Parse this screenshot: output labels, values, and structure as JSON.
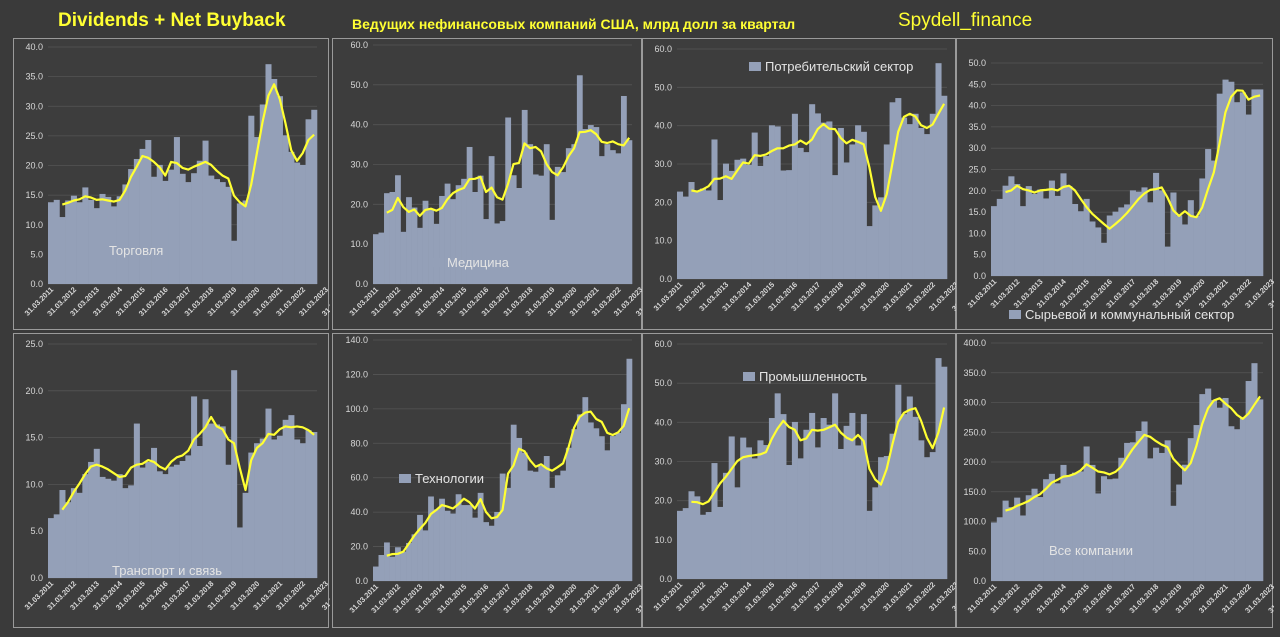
{
  "header": {
    "left_title": "Dividends + Net Buyback",
    "center_title": "Ведущих нефинансовых компаний США, млрд долл за квартал",
    "right_title": "Spydell_finance"
  },
  "colors": {
    "bar": "#94a0b8",
    "line": "#ffff33",
    "grid": "#555555",
    "text": "#d8d8d8"
  },
  "x_tick_labels": [
    "31.03.2011",
    "31.03.2012",
    "31.03.2013",
    "31.03.2014",
    "31.03.2015",
    "31.03.2016",
    "31.03.2017",
    "31.03.2018",
    "31.03.2019",
    "31.03.2020",
    "31.03.2021",
    "31.03.2022",
    "31.03.2023",
    "31.03.2024"
  ],
  "chart_data": [
    {
      "type": "bar",
      "legend": "Торговля",
      "ylim": [
        0,
        40
      ],
      "ystep": 5,
      "ydec": 1,
      "values": [
        13.8,
        14.2,
        11.3,
        14.1,
        14.9,
        13.8,
        16.3,
        14.2,
        12.8,
        15.2,
        14.7,
        13.1,
        14.8,
        16.8,
        19.4,
        21.1,
        22.8,
        24.3,
        18.1,
        20.1,
        17.4,
        19.3,
        24.8,
        18.6,
        17.2,
        18.7,
        20.8,
        24.2,
        18.3,
        17.7,
        17.2,
        16.4,
        7.3,
        13.6,
        14.1,
        28.4,
        24.8,
        30.3,
        37.1,
        34.6,
        31.7,
        25.1,
        22.3,
        20.5,
        20.1,
        27.8,
        29.4
      ],
      "line": [
        null,
        null,
        13.4,
        13.7,
        14.1,
        14.3,
        14.8,
        14.6,
        14.2,
        14.3,
        14.1,
        13.9,
        14.2,
        15.8,
        18.1,
        19.8,
        21.6,
        21.3,
        20.6,
        19.7,
        18.3,
        20.6,
        20.4,
        19.6,
        19.3,
        19.8,
        20.2,
        20.6,
        20.1,
        19.1,
        18.3,
        17.8,
        14.9,
        13.8,
        13.1,
        16.8,
        22.1,
        27.4,
        31.8,
        33.7,
        31.2,
        27.1,
        22.6,
        20.8,
        22.1,
        24.3,
        25.2
      ]
    },
    {
      "type": "bar",
      "legend": "Медицина",
      "ylim": [
        0,
        60
      ],
      "ystep": 10,
      "ydec": 1,
      "values": [
        12.5,
        12.9,
        22.8,
        23.1,
        27.3,
        13.1,
        21.8,
        19.2,
        14.1,
        20.9,
        18.8,
        15.1,
        22.1,
        25.2,
        21.3,
        24.8,
        26.4,
        34.4,
        23.1,
        27.2,
        16.3,
        32.1,
        15.2,
        15.8,
        41.8,
        27.3,
        24.1,
        43.7,
        35.1,
        27.5,
        27.2,
        35.1,
        16.1,
        29.4,
        28.1,
        34.1,
        35.1,
        52.4,
        38.9,
        39.9,
        39.4,
        32.1,
        35.1,
        33.6,
        32.8,
        47.2,
        36.1
      ],
      "line": [
        null,
        null,
        17.9,
        18.6,
        21.6,
        19.3,
        18.1,
        18.7,
        17.1,
        18.6,
        18.9,
        18.4,
        19.1,
        21.3,
        22.8,
        23.6,
        24.1,
        26.3,
        26.4,
        26.9,
        23.1,
        24.2,
        21.8,
        21.2,
        25.1,
        30.1,
        30.4,
        35.3,
        34.1,
        34.4,
        33.3,
        30.1,
        28.1,
        27.3,
        29.3,
        32.1,
        34.1,
        38.1,
        38.2,
        38.6,
        37.6,
        35.7,
        35.4,
        35.8,
        35.1,
        34.8,
        36.7
      ]
    },
    {
      "type": "bar",
      "legend": "Потребительский сектор",
      "ylim": [
        0,
        60
      ],
      "ystep": 10,
      "ydec": 1,
      "values": [
        22.8,
        21.5,
        25.3,
        22.8,
        23.6,
        23.1,
        36.4,
        20.6,
        30.1,
        28.2,
        31.1,
        31.4,
        29.8,
        38.2,
        29.5,
        32.1,
        40.1,
        39.8,
        28.3,
        28.4,
        43.1,
        34.2,
        33.1,
        45.6,
        43.2,
        40.8,
        41.1,
        27.1,
        39.4,
        30.4,
        35.1,
        40.1,
        38.4,
        13.8,
        19.2,
        21.3,
        35.1,
        46.1,
        47.2,
        42.1,
        40.4,
        43.1,
        39.4,
        37.8,
        43.1,
        56.3,
        47.8
      ],
      "line": [
        null,
        null,
        23.1,
        22.8,
        23.4,
        24.2,
        26.1,
        26.2,
        26.8,
        26.1,
        28.3,
        30.4,
        30.1,
        32.3,
        32.1,
        32.5,
        33.4,
        34.1,
        34.1,
        34.8,
        35.1,
        36.1,
        35.2,
        36.4,
        39.1,
        40.4,
        39.2,
        39.1,
        36.8,
        35.4,
        36.3,
        35.8,
        35.1,
        29.1,
        21.4,
        17.8,
        22.1,
        30.1,
        38.4,
        42.3,
        43.1,
        42.4,
        40.1,
        39.4,
        40.3,
        43.1,
        45.7
      ]
    },
    {
      "type": "bar",
      "legend": "Сырьевой и коммунальный сектор",
      "ylim": [
        0,
        50
      ],
      "ystep": 5,
      "ydec": 1,
      "values": [
        16.4,
        18.1,
        21.2,
        23.4,
        21.6,
        16.4,
        21.1,
        19.3,
        20.3,
        18.2,
        22.4,
        18.8,
        24.1,
        21.1,
        16.9,
        15.2,
        18.1,
        12.8,
        11.4,
        7.8,
        14.2,
        15.1,
        16.1,
        16.8,
        20.1,
        19.8,
        20.8,
        17.3,
        24.2,
        20.1,
        6.9,
        19.6,
        14.2,
        12.1,
        17.8,
        14.1,
        22.9,
        29.8,
        27.1,
        42.8,
        46.1,
        45.6,
        40.8,
        43.1,
        37.9,
        43.8,
        43.8
      ],
      "line": [
        null,
        null,
        19.7,
        20.1,
        21.2,
        20.4,
        20.1,
        19.6,
        20.1,
        20.2,
        20.4,
        20.1,
        20.9,
        21.2,
        20.1,
        18.1,
        16.2,
        14.6,
        13.4,
        12.2,
        11.1,
        12.2,
        13.4,
        14.8,
        16.4,
        18.1,
        19.4,
        20.2,
        20.4,
        20.8,
        18.4,
        15.4,
        14.1,
        15.2,
        14.1,
        13.8,
        16.1,
        20.4,
        24.3,
        31.2,
        38.4,
        42.1,
        43.6,
        43.5,
        41.4,
        42.1,
        42.4
      ]
    },
    {
      "type": "bar",
      "legend": "Транспорт и связь",
      "ylim": [
        0,
        25
      ],
      "ystep": 5,
      "ydec": 1,
      "values": [
        6.4,
        6.8,
        9.4,
        8.1,
        9.6,
        9.1,
        11.1,
        12.4,
        13.8,
        10.8,
        10.6,
        10.4,
        11.1,
        9.6,
        9.9,
        16.5,
        11.8,
        12.4,
        13.9,
        11.4,
        11.1,
        11.9,
        12.1,
        12.5,
        13.1,
        19.4,
        14.1,
        19.1,
        16.5,
        16.4,
        16.2,
        12.1,
        22.2,
        5.4,
        9.1,
        13.4,
        14.4,
        14.9,
        18.1,
        14.8,
        15.2,
        16.9,
        17.4,
        14.8,
        14.4,
        15.8,
        15.6
      ],
      "line": [
        null,
        null,
        7.3,
        8.1,
        9.2,
        10.1,
        11.1,
        11.9,
        12.1,
        11.9,
        11.6,
        11.2,
        10.8,
        10.9,
        11.8,
        12.1,
        12.2,
        12.6,
        12.4,
        11.9,
        11.6,
        12.4,
        12.9,
        13.1,
        13.6,
        14.8,
        15.4,
        16.1,
        17.2,
        16.2,
        15.9,
        14.8,
        14.4,
        11.8,
        9.4,
        12.6,
        13.9,
        14.4,
        15.4,
        15.3,
        15.9,
        16.2,
        16.1,
        16.2,
        16.1,
        15.8,
        15.3
      ]
    },
    {
      "type": "bar",
      "legend": "Технологии",
      "ylim": [
        0,
        140
      ],
      "ystep": 20,
      "ydec": 1,
      "values": [
        8.4,
        15.1,
        22.4,
        14.1,
        19.6,
        17.1,
        22.1,
        27.1,
        38.4,
        29.4,
        49.1,
        41.6,
        47.8,
        40.8,
        39.2,
        50.4,
        44.1,
        44.1,
        36.8,
        51.2,
        34.2,
        32.1,
        40.1,
        62.4,
        54.1,
        90.8,
        83.1,
        74.6,
        64.1,
        63.5,
        66.8,
        72.6,
        54.1,
        61.4,
        64.1,
        77.4,
        88.2,
        96.8,
        106.8,
        92.1,
        88.7,
        84.1,
        75.9,
        84.2,
        86.1,
        102.7,
        129.1
      ],
      "line": [
        null,
        null,
        14.7,
        15.6,
        15.8,
        17.1,
        21.6,
        26.4,
        30.2,
        33.8,
        38.9,
        41.3,
        44.1,
        43.2,
        42.1,
        44.6,
        47.8,
        45.8,
        42.1,
        47.6,
        40.1,
        36.4,
        37.1,
        41.2,
        62.4,
        67.1,
        76.8,
        75.4,
        70.1,
        66.4,
        67.8,
        65.4,
        64.1,
        66.1,
        68.4,
        77.8,
        89.1,
        95.4,
        97.8,
        98.4,
        94.1,
        92.4,
        86.1,
        84.8,
        86.4,
        90.1,
        100.4
      ]
    },
    {
      "type": "bar",
      "legend": "Промышленность",
      "ylim": [
        0,
        60
      ],
      "ystep": 10,
      "ydec": 1,
      "values": [
        17.4,
        18.1,
        22.4,
        21.1,
        16.4,
        17.1,
        29.6,
        18.4,
        27.1,
        36.4,
        23.4,
        36.1,
        33.6,
        30.8,
        35.4,
        34.2,
        41.1,
        47.4,
        42.1,
        29.1,
        40.1,
        30.8,
        38.1,
        42.4,
        33.6,
        41.1,
        39.4,
        47.4,
        33.2,
        39.1,
        42.4,
        34.1,
        42.1,
        17.4,
        23.4,
        31.1,
        31.4,
        37.1,
        49.6,
        42.1,
        46.6,
        41.4,
        35.4,
        31.1,
        32.4,
        56.4,
        54.2
      ],
      "line": [
        null,
        null,
        19.7,
        19.6,
        19.1,
        19.8,
        22.1,
        24.4,
        26.1,
        28.1,
        30.1,
        31.1,
        31.4,
        31.6,
        31.8,
        32.4,
        35.8,
        38.4,
        40.4,
        38.8,
        38.1,
        35.4,
        35.9,
        38.1,
        37.9,
        38.1,
        38.7,
        39.4,
        37.4,
        36.1,
        35.4,
        36.8,
        35.2,
        28.1,
        25.4,
        24.1,
        28.1,
        34.4,
        40.1,
        42.4,
        43.2,
        43.6,
        40.4,
        36.1,
        33.4,
        37.4,
        43.8
      ]
    },
    {
      "type": "bar",
      "legend": "Все компании",
      "ylim": [
        0,
        400
      ],
      "ystep": 50,
      "ydec": 1,
      "values": [
        98.4,
        107.1,
        135.1,
        124.1,
        140.1,
        110.1,
        144.1,
        155.1,
        141.1,
        171.1,
        180.1,
        164.1,
        195.1,
        177.6,
        182.1,
        184.1,
        226.1,
        195.1,
        147.1,
        176.1,
        171.1,
        172.1,
        207.1,
        232.1,
        233.1,
        252.1,
        268.1,
        206.1,
        224.1,
        215.2,
        236.4,
        126.4,
        162.1,
        195.4,
        240.1,
        262.1,
        314.1,
        323.4,
        304.1,
        291.3,
        307.6,
        260.1,
        255.1,
        275.2,
        336.1,
        366.1,
        305.2
      ],
      "line": [
        null,
        null,
        118.4,
        121.1,
        126.4,
        130.1,
        134.4,
        141.1,
        146.1,
        155.1,
        165.4,
        170.1,
        175.4,
        176.8,
        180.1,
        186.1,
        196.1,
        190.4,
        184.1,
        182.6,
        179.1,
        183.4,
        192.1,
        207.4,
        222.1,
        234.1,
        245.6,
        242.4,
        235.1,
        229.1,
        225.1,
        205.4,
        195.1,
        186.1,
        198.4,
        227.1,
        264.1,
        290.1,
        303.4,
        307.1,
        298.1,
        290.4,
        279.1,
        272.6,
        281.4,
        296.1,
        310.2
      ]
    }
  ]
}
